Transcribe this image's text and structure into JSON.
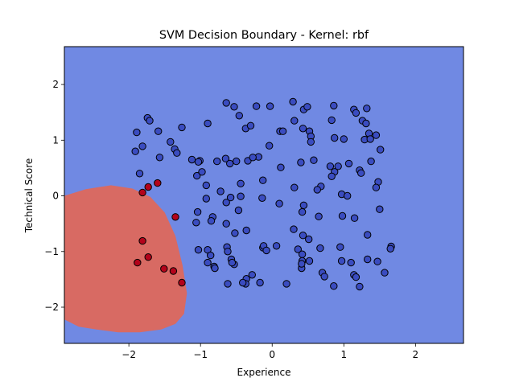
{
  "chart_data": {
    "type": "scatter",
    "title": "SVM Decision Boundary - Kernel: rbf",
    "xlabel": "Experience",
    "ylabel": "Technical Score",
    "xlim": [
      -2.9,
      2.67
    ],
    "ylim": [
      -2.65,
      2.68
    ],
    "x_ticks": [
      -2,
      -1,
      0,
      1,
      2
    ],
    "y_ticks": [
      -2,
      -1,
      0,
      1,
      2
    ],
    "x_tick_labels": [
      "−2",
      "−1",
      "0",
      "1",
      "2"
    ],
    "y_tick_labels": [
      "−2",
      "−1",
      "0",
      "1",
      "2"
    ],
    "grid": false,
    "colors": {
      "background_region": "#7089e3",
      "boundary_region": "#d86a63",
      "class_0_point": "#3a4cc0",
      "class_1_point": "#b3031b",
      "point_edge": "#000000"
    },
    "decision_region": {
      "class": 1,
      "boundary": [
        [
          -2.9,
          0.0
        ],
        [
          -2.6,
          0.12
        ],
        [
          -2.25,
          0.19
        ],
        [
          -1.95,
          0.13
        ],
        [
          -1.7,
          -0.02
        ],
        [
          -1.5,
          -0.3
        ],
        [
          -1.35,
          -0.72
        ],
        [
          -1.25,
          -1.25
        ],
        [
          -1.19,
          -1.75
        ],
        [
          -1.23,
          -2.12
        ],
        [
          -1.35,
          -2.3
        ],
        [
          -1.55,
          -2.4
        ],
        [
          -1.85,
          -2.45
        ],
        [
          -2.15,
          -2.45
        ],
        [
          -2.45,
          -2.4
        ],
        [
          -2.7,
          -2.35
        ],
        [
          -2.9,
          -2.22
        ]
      ]
    },
    "series": [
      {
        "class": 0,
        "points": [
          [
            -0.64,
            1.67
          ],
          [
            -0.53,
            1.6
          ],
          [
            -0.22,
            1.61
          ],
          [
            -0.03,
            1.61
          ],
          [
            0.29,
            1.69
          ],
          [
            0.44,
            1.55
          ],
          [
            0.49,
            1.6
          ],
          [
            0.86,
            1.62
          ],
          [
            1.14,
            1.55
          ],
          [
            1.32,
            1.57
          ],
          [
            1.17,
            1.49
          ],
          [
            -1.74,
            1.4
          ],
          [
            -1.71,
            1.35
          ],
          [
            -1.59,
            1.16
          ],
          [
            -1.26,
            1.23
          ],
          [
            -0.9,
            1.3
          ],
          [
            -0.46,
            1.44
          ],
          [
            -0.37,
            1.21
          ],
          [
            -0.3,
            1.26
          ],
          [
            0.11,
            1.16
          ],
          [
            0.15,
            1.16
          ],
          [
            0.31,
            1.35
          ],
          [
            0.43,
            1.21
          ],
          [
            0.52,
            1.16
          ],
          [
            0.54,
            1.07
          ],
          [
            0.54,
            0.97
          ],
          [
            0.83,
            1.36
          ],
          [
            0.87,
            1.04
          ],
          [
            1.0,
            1.02
          ],
          [
            1.26,
            1.35
          ],
          [
            1.31,
            1.3
          ],
          [
            1.35,
            1.12
          ],
          [
            1.29,
            1.01
          ],
          [
            1.45,
            1.09
          ],
          [
            1.51,
            0.83
          ],
          [
            1.37,
            1.02
          ],
          [
            -1.89,
            1.14
          ],
          [
            -1.91,
            0.8
          ],
          [
            -1.81,
            0.89
          ],
          [
            -1.42,
            0.97
          ],
          [
            -1.36,
            0.84
          ],
          [
            -1.33,
            0.77
          ],
          [
            -1.57,
            0.69
          ],
          [
            -1.12,
            0.65
          ],
          [
            -1.01,
            0.63
          ],
          [
            -1.03,
            0.61
          ],
          [
            -0.77,
            0.62
          ],
          [
            -0.65,
            0.67
          ],
          [
            -0.59,
            0.58
          ],
          [
            -0.5,
            0.62
          ],
          [
            -0.34,
            0.63
          ],
          [
            -0.19,
            0.7
          ],
          [
            -0.04,
            0.9
          ],
          [
            0.12,
            0.51
          ],
          [
            0.4,
            0.6
          ],
          [
            0.58,
            0.64
          ],
          [
            0.81,
            0.53
          ],
          [
            0.92,
            0.53
          ],
          [
            0.87,
            0.43
          ],
          [
            0.83,
            0.35
          ],
          [
            1.07,
            0.58
          ],
          [
            1.22,
            0.46
          ],
          [
            1.24,
            0.41
          ],
          [
            1.38,
            0.62
          ],
          [
            1.48,
            0.25
          ],
          [
            1.45,
            0.15
          ],
          [
            -1.85,
            0.4
          ],
          [
            -1.05,
            0.36
          ],
          [
            -0.98,
            0.43
          ],
          [
            -0.92,
            0.19
          ],
          [
            -0.72,
            0.08
          ],
          [
            -0.44,
            0.22
          ],
          [
            -0.27,
            0.69
          ],
          [
            -0.13,
            0.28
          ],
          [
            0.31,
            0.15
          ],
          [
            0.68,
            0.17
          ],
          [
            0.97,
            0.03
          ],
          [
            0.63,
            0.11
          ],
          [
            1.05,
            0.0
          ],
          [
            -0.92,
            -0.05
          ],
          [
            -0.64,
            -0.12
          ],
          [
            -0.58,
            -0.03
          ],
          [
            -0.44,
            -0.01
          ],
          [
            -0.47,
            -0.26
          ],
          [
            -0.14,
            -0.04
          ],
          [
            0.1,
            -0.14
          ],
          [
            0.44,
            -0.17
          ],
          [
            0.42,
            -0.29
          ],
          [
            0.65,
            -0.37
          ],
          [
            0.98,
            -0.36
          ],
          [
            1.15,
            -0.4
          ],
          [
            1.5,
            -0.24
          ],
          [
            -1.04,
            -0.29
          ],
          [
            -1.06,
            -0.48
          ],
          [
            -0.83,
            -0.38
          ],
          [
            -0.85,
            -0.45
          ],
          [
            -0.64,
            -0.5
          ],
          [
            -0.52,
            -0.67
          ],
          [
            -0.36,
            -0.62
          ],
          [
            0.3,
            -0.6
          ],
          [
            0.43,
            -0.71
          ],
          [
            0.51,
            -0.78
          ],
          [
            -1.03,
            -0.97
          ],
          [
            -0.9,
            -0.97
          ],
          [
            -0.86,
            -1.07
          ],
          [
            -0.63,
            -0.92
          ],
          [
            -0.62,
            -1.0
          ],
          [
            -0.57,
            -1.14
          ],
          [
            -0.53,
            -1.23
          ],
          [
            -0.13,
            -0.93
          ],
          [
            -0.12,
            -0.9
          ],
          [
            -0.08,
            -0.98
          ],
          [
            0.06,
            -0.9
          ],
          [
            0.36,
            -0.96
          ],
          [
            0.42,
            -1.05
          ],
          [
            0.42,
            -1.17
          ],
          [
            0.52,
            -1.17
          ],
          [
            0.67,
            -0.94
          ],
          [
            0.95,
            -0.92
          ],
          [
            0.97,
            -1.17
          ],
          [
            1.1,
            -1.2
          ],
          [
            1.33,
            -0.7
          ],
          [
            1.33,
            -1.14
          ],
          [
            1.47,
            -1.18
          ],
          [
            1.66,
            -0.91
          ],
          [
            1.65,
            -0.95
          ],
          [
            -0.9,
            -1.2
          ],
          [
            -0.81,
            -1.27
          ],
          [
            -0.8,
            -1.3
          ],
          [
            -0.56,
            -1.2
          ],
          [
            -0.36,
            -1.49
          ],
          [
            -0.28,
            -1.42
          ],
          [
            -0.37,
            -1.58
          ],
          [
            -0.41,
            -1.56
          ],
          [
            -0.62,
            -1.58
          ],
          [
            -0.17,
            -1.56
          ],
          [
            0.2,
            -1.58
          ],
          [
            0.41,
            -1.3
          ],
          [
            0.41,
            -1.22
          ],
          [
            0.7,
            -1.38
          ],
          [
            0.73,
            -1.45
          ],
          [
            0.86,
            -1.62
          ],
          [
            1.14,
            -1.42
          ],
          [
            1.17,
            -1.46
          ],
          [
            1.22,
            -1.63
          ],
          [
            1.57,
            -1.38
          ]
        ]
      },
      {
        "class": 1,
        "points": [
          [
            -1.81,
            0.06
          ],
          [
            -1.73,
            0.16
          ],
          [
            -1.6,
            0.23
          ],
          [
            -1.35,
            -0.38
          ],
          [
            -1.81,
            -0.81
          ],
          [
            -1.73,
            -1.1
          ],
          [
            -1.88,
            -1.2
          ],
          [
            -1.51,
            -1.31
          ],
          [
            -1.38,
            -1.35
          ],
          [
            -1.26,
            -1.56
          ]
        ]
      }
    ]
  }
}
